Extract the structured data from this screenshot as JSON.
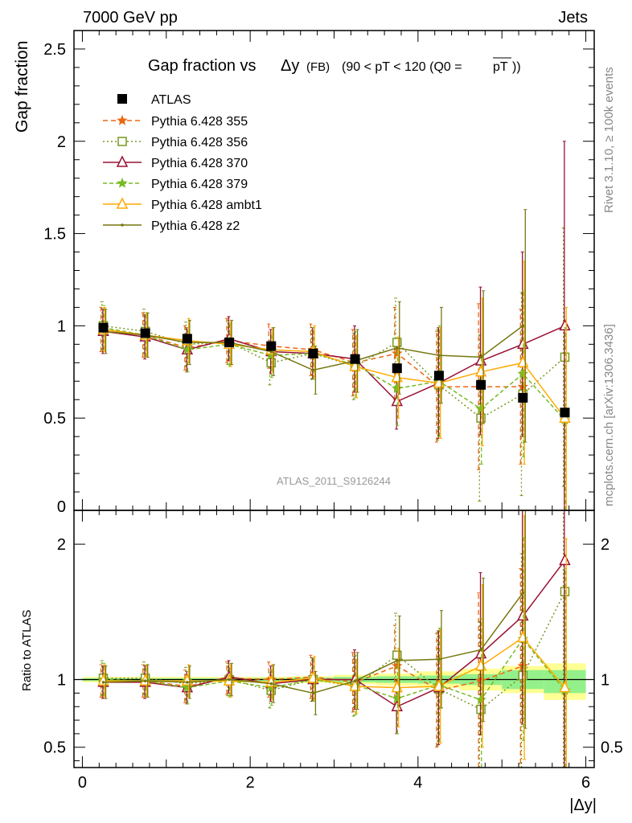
{
  "header": {
    "left": "7000 GeV pp",
    "right": "Jets",
    "rivet": "Rivet 3.1.10, ≥ 100k events",
    "mcplots": "mcplots.cern.ch [arXiv:1306.3436]",
    "watermark": "ATLAS_2011_S9126244"
  },
  "title": {
    "main": "Gap fraction vs",
    "var": "Δy",
    "fb": "(FB)",
    "range": "(90 < pT < 120 (Q0 =",
    "pt": "pT",
    "close": "))"
  },
  "chart_data": [
    {
      "panel": "main",
      "type": "scatter",
      "ylabel": "Gap fraction",
      "xlim": [
        -0.1,
        6.1
      ],
      "ylim": [
        0,
        2.6
      ],
      "yticks": [
        0.5,
        1,
        1.5,
        2,
        2.5
      ],
      "ytick_labels": [
        "0.5",
        "1",
        "1.5",
        "2",
        "2.5"
      ],
      "x": [
        0.25,
        0.75,
        1.25,
        1.75,
        2.25,
        2.75,
        3.25,
        3.75,
        4.25,
        4.75,
        5.25,
        5.75
      ],
      "data": {
        "name": "ATLAS",
        "values": [
          0.99,
          0.96,
          0.93,
          0.91,
          0.89,
          0.85,
          0.82,
          0.77,
          0.73,
          0.68,
          0.61,
          0.53
        ]
      },
      "series": [
        {
          "name": "Pythia 6.428 355",
          "color": "#ee6611",
          "dash": "6,4",
          "marker": "star",
          "values": [
            0.98,
            0.95,
            0.88,
            0.92,
            0.89,
            0.87,
            0.8,
            0.85,
            0.67,
            0.67,
            0.67,
            null
          ],
          "errors": [
            0.12,
            0.12,
            0.12,
            0.12,
            0.12,
            0.14,
            0.18,
            0.25,
            0.3,
            0.45,
            0.42,
            null
          ]
        },
        {
          "name": "Pythia 6.428 356",
          "color": "#779922",
          "dash": "2,3",
          "marker": "square-open",
          "values": [
            1.0,
            0.97,
            0.9,
            0.91,
            0.8,
            0.85,
            0.78,
            0.91,
            0.68,
            0.5,
            0.63,
            0.83
          ],
          "errors": [
            0.13,
            0.12,
            0.12,
            0.12,
            0.12,
            0.14,
            0.18,
            0.24,
            0.3,
            0.45,
            0.55,
            0.7
          ]
        },
        {
          "name": "Pythia 6.428 370",
          "color": "#991133",
          "dash": "",
          "marker": "triangle-open",
          "values": [
            0.97,
            0.94,
            0.87,
            0.93,
            0.86,
            0.85,
            0.82,
            0.59,
            0.69,
            0.81,
            0.9,
            1.0
          ],
          "errors": [
            0.12,
            0.12,
            0.12,
            0.12,
            0.12,
            0.14,
            0.18,
            0.15,
            0.3,
            0.4,
            0.5,
            1.0
          ]
        },
        {
          "name": "Pythia 6.428 379",
          "color": "#77bb22",
          "dash": "5,3",
          "marker": "star",
          "values": [
            0.99,
            0.95,
            0.87,
            0.9,
            0.84,
            0.85,
            0.79,
            0.66,
            0.7,
            0.55,
            0.74,
            0.49
          ],
          "errors": [
            0.12,
            0.12,
            0.12,
            0.12,
            0.12,
            0.14,
            0.18,
            0.2,
            0.3,
            0.3,
            0.45,
            0.5
          ]
        },
        {
          "name": "Pythia 6.428 ambt1",
          "color": "#ffaa00",
          "dash": "",
          "marker": "triangle-open",
          "values": [
            0.98,
            0.95,
            0.92,
            0.9,
            0.87,
            0.86,
            0.78,
            0.72,
            0.69,
            0.75,
            0.8,
            0.5
          ],
          "errors": [
            0.12,
            0.12,
            0.12,
            0.12,
            0.12,
            0.14,
            0.17,
            0.22,
            0.3,
            0.4,
            0.55,
            0.6
          ]
        },
        {
          "name": "Pythia 6.428 z2",
          "color": "#777711",
          "dash": "",
          "marker": "dot",
          "values": [
            0.97,
            0.95,
            0.91,
            0.91,
            0.86,
            0.76,
            0.81,
            0.88,
            0.84,
            0.83,
            1.0,
            null
          ],
          "errors": [
            0.12,
            0.12,
            0.12,
            0.12,
            0.13,
            0.13,
            0.17,
            0.25,
            0.26,
            0.36,
            0.63,
            null
          ]
        }
      ]
    },
    {
      "panel": "ratio",
      "type": "line",
      "ylabel": "Ratio to ATLAS",
      "xlabel": "|Δy|",
      "xlim": [
        -0.1,
        6.1
      ],
      "ylim": [
        0.35,
        2.25
      ],
      "xticks": [
        0,
        2,
        4,
        6
      ],
      "xtick_labels": [
        "0",
        "2",
        "4",
        "6"
      ],
      "yticks": [
        0.5,
        1,
        2
      ],
      "ytick_labels": [
        "0.5",
        "1",
        "2"
      ],
      "x": [
        0.25,
        0.75,
        1.25,
        1.75,
        2.25,
        2.75,
        3.25,
        3.75,
        4.25,
        4.75,
        5.25,
        5.75
      ],
      "band_inner": [
        0.01,
        0.01,
        0.01,
        0.01,
        0.012,
        0.015,
        0.02,
        0.025,
        0.03,
        0.04,
        0.07,
        0.07
      ],
      "band_outer": [
        0.02,
        0.02,
        0.02,
        0.02,
        0.02,
        0.025,
        0.035,
        0.045,
        0.06,
        0.08,
        0.1,
        0.12
      ],
      "band_lower_offset": [
        0,
        0,
        0,
        0,
        0,
        0,
        0,
        0,
        0,
        0,
        0,
        0.03
      ],
      "series": [
        {
          "name": "Pythia 6.428 355",
          "values": [
            0.99,
            0.99,
            0.95,
            1.01,
            1.0,
            1.02,
            0.98,
            1.1,
            0.92,
            0.99,
            1.1,
            null
          ],
          "errors": [
            0.12,
            0.12,
            0.12,
            0.12,
            0.13,
            0.16,
            0.22,
            0.3,
            0.42,
            0.65,
            0.72,
            null
          ]
        },
        {
          "name": "Pythia 6.428 356",
          "values": [
            1.01,
            1.01,
            0.97,
            1.0,
            0.92,
            1.0,
            0.95,
            1.18,
            0.93,
            0.78,
            1.03,
            1.65
          ],
          "errors": [
            0.13,
            0.12,
            0.12,
            0.12,
            0.13,
            0.16,
            0.22,
            0.31,
            0.42,
            0.65,
            0.9,
            1.3
          ]
        },
        {
          "name": "Pythia 6.428 370",
          "values": [
            0.98,
            0.98,
            0.94,
            1.02,
            0.97,
            1.0,
            1.0,
            0.8,
            0.94,
            1.19,
            1.47,
            1.88
          ],
          "errors": [
            0.12,
            0.12,
            0.12,
            0.12,
            0.13,
            0.16,
            0.22,
            0.2,
            0.42,
            0.6,
            0.8,
            1.6
          ]
        },
        {
          "name": "Pythia 6.428 379",
          "values": [
            1.0,
            0.99,
            0.94,
            0.99,
            0.94,
            1.0,
            0.96,
            0.86,
            0.96,
            0.85,
            1.3,
            0.92
          ],
          "errors": [
            0.12,
            0.12,
            0.12,
            0.12,
            0.13,
            0.16,
            0.22,
            0.26,
            0.42,
            0.6,
            0.75,
            0.9
          ]
        },
        {
          "name": "Pythia 6.428 ambt1",
          "values": [
            0.99,
            0.99,
            0.99,
            0.99,
            0.98,
            1.01,
            0.95,
            0.94,
            0.95,
            1.1,
            1.31,
            0.94
          ],
          "errors": [
            0.12,
            0.12,
            0.12,
            0.12,
            0.13,
            0.16,
            0.2,
            0.29,
            0.42,
            0.6,
            0.9,
            1.1
          ]
        },
        {
          "name": "Pythia 6.428 z2",
          "values": [
            0.98,
            0.99,
            0.98,
            1.0,
            0.97,
            0.9,
            0.99,
            1.14,
            1.15,
            1.22,
            1.64,
            null
          ],
          "errors": [
            0.12,
            0.12,
            0.12,
            0.12,
            0.14,
            0.16,
            0.21,
            0.33,
            0.36,
            0.53,
            1.0,
            null
          ]
        }
      ]
    }
  ]
}
